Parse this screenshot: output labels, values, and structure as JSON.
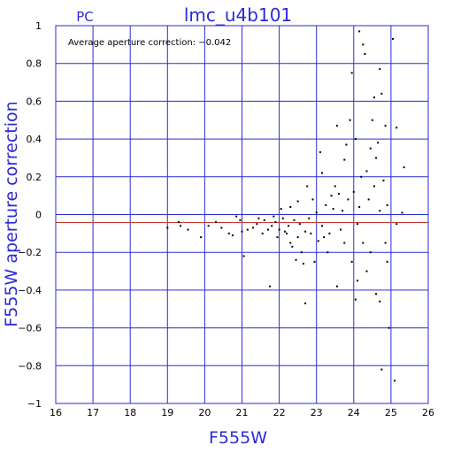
{
  "header": {
    "detector": "PC",
    "title": "lmc_u4b101"
  },
  "annotation": "Average aperture correction:  −0.042",
  "colors": {
    "axis": "#2a2ad6",
    "grid": "#2a2ad6",
    "mean_line": "#c0392b",
    "points": "#000000",
    "background": "#ffffff"
  },
  "chart_data": {
    "type": "scatter",
    "xlabel": "F555W",
    "ylabel": "F555W aperture correction",
    "xlim": [
      16,
      26
    ],
    "ylim": [
      -1,
      1
    ],
    "x_ticks": [
      "16",
      "17",
      "18",
      "19",
      "20",
      "21",
      "22",
      "23",
      "24",
      "25",
      "26"
    ],
    "y_ticks": [
      "1",
      "0.8",
      "0.6",
      "0.4",
      "0.2",
      "0",
      "−0.2",
      "−0.4",
      "−0.6",
      "−0.8",
      "−1"
    ],
    "x_tick_values": [
      16,
      17,
      18,
      19,
      20,
      21,
      22,
      23,
      24,
      25,
      26
    ],
    "y_tick_values": [
      1,
      0.8,
      0.6,
      0.4,
      0.2,
      0,
      -0.2,
      -0.4,
      -0.6,
      -0.8,
      -1
    ],
    "grid": true,
    "reference_lines": [
      0,
      -0.042
    ],
    "points": [
      [
        19.0,
        -0.07
      ],
      [
        19.3,
        -0.04
      ],
      [
        19.35,
        -0.06
      ],
      [
        19.55,
        -0.08
      ],
      [
        19.9,
        -0.12
      ],
      [
        20.1,
        -0.06
      ],
      [
        20.3,
        -0.04
      ],
      [
        20.45,
        -0.07
      ],
      [
        20.65,
        -0.1
      ],
      [
        20.75,
        -0.11
      ],
      [
        20.85,
        -0.01
      ],
      [
        20.95,
        -0.03
      ],
      [
        21.0,
        -0.09
      ],
      [
        21.05,
        -0.22
      ],
      [
        21.15,
        -0.08
      ],
      [
        21.3,
        -0.07
      ],
      [
        21.4,
        -0.05
      ],
      [
        21.45,
        -0.02
      ],
      [
        21.55,
        -0.1
      ],
      [
        21.6,
        -0.03
      ],
      [
        21.7,
        -0.08
      ],
      [
        21.75,
        -0.38
      ],
      [
        21.8,
        -0.06
      ],
      [
        21.85,
        -0.01
      ],
      [
        21.9,
        -0.04
      ],
      [
        21.95,
        -0.12
      ],
      [
        22.0,
        -0.08
      ],
      [
        22.05,
        0.03
      ],
      [
        22.1,
        -0.02
      ],
      [
        22.15,
        -0.09
      ],
      [
        22.2,
        -0.1
      ],
      [
        22.25,
        -0.06
      ],
      [
        22.3,
        0.04
      ],
      [
        22.3,
        -0.15
      ],
      [
        22.35,
        -0.17
      ],
      [
        22.4,
        -0.03
      ],
      [
        22.45,
        -0.24
      ],
      [
        22.5,
        -0.12
      ],
      [
        22.5,
        0.07
      ],
      [
        22.55,
        -0.05
      ],
      [
        22.6,
        -0.2
      ],
      [
        22.65,
        -0.26
      ],
      [
        22.7,
        -0.09
      ],
      [
        22.7,
        -0.47
      ],
      [
        22.75,
        0.15
      ],
      [
        22.8,
        -0.02
      ],
      [
        22.85,
        -0.1
      ],
      [
        22.9,
        0.08
      ],
      [
        22.95,
        -0.25
      ],
      [
        23.0,
        0.01
      ],
      [
        23.05,
        -0.14
      ],
      [
        23.1,
        0.33
      ],
      [
        23.15,
        -0.06
      ],
      [
        23.15,
        0.22
      ],
      [
        23.2,
        -0.12
      ],
      [
        23.25,
        0.05
      ],
      [
        23.3,
        -0.2
      ],
      [
        23.35,
        -0.1
      ],
      [
        23.4,
        0.1
      ],
      [
        23.45,
        0.03
      ],
      [
        23.5,
        0.15
      ],
      [
        23.55,
        -0.38
      ],
      [
        23.55,
        0.47
      ],
      [
        23.6,
        0.11
      ],
      [
        23.65,
        -0.08
      ],
      [
        23.7,
        0.02
      ],
      [
        23.75,
        0.29
      ],
      [
        23.75,
        -0.15
      ],
      [
        23.8,
        0.37
      ],
      [
        23.85,
        0.08
      ],
      [
        23.9,
        0.5
      ],
      [
        23.95,
        -0.25
      ],
      [
        23.95,
        0.75
      ],
      [
        24.0,
        0.12
      ],
      [
        24.05,
        -0.45
      ],
      [
        24.05,
        0.4
      ],
      [
        24.1,
        -0.05
      ],
      [
        24.1,
        -0.35
      ],
      [
        24.15,
        0.04
      ],
      [
        24.15,
        0.97
      ],
      [
        24.2,
        0.2
      ],
      [
        24.25,
        -0.15
      ],
      [
        24.25,
        0.9
      ],
      [
        24.3,
        0.85
      ],
      [
        24.35,
        -0.3
      ],
      [
        24.35,
        0.23
      ],
      [
        24.4,
        0.08
      ],
      [
        24.45,
        -0.2
      ],
      [
        24.45,
        0.35
      ],
      [
        24.5,
        0.5
      ],
      [
        24.55,
        0.62
      ],
      [
        24.55,
        0.15
      ],
      [
        24.6,
        -0.42
      ],
      [
        24.6,
        0.3
      ],
      [
        24.65,
        0.38
      ],
      [
        24.7,
        0.02
      ],
      [
        24.7,
        -0.46
      ],
      [
        24.7,
        0.77
      ],
      [
        24.75,
        0.64
      ],
      [
        24.75,
        -0.82
      ],
      [
        24.8,
        0.18
      ],
      [
        24.85,
        0.47
      ],
      [
        24.85,
        -0.15
      ],
      [
        24.9,
        0.05
      ],
      [
        24.9,
        -0.25
      ],
      [
        24.95,
        -0.6
      ],
      [
        25.05,
        0.93
      ],
      [
        25.1,
        -0.88
      ],
      [
        25.15,
        0.46
      ],
      [
        25.15,
        -0.05
      ],
      [
        25.3,
        0.01
      ],
      [
        25.35,
        0.25
      ]
    ]
  }
}
